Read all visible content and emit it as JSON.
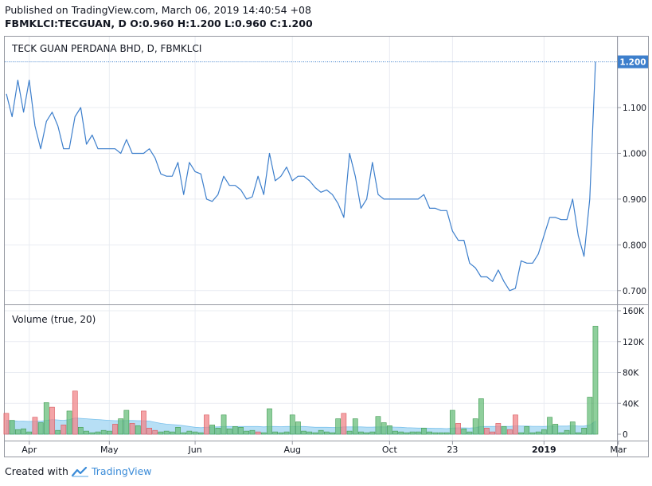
{
  "header": {
    "published": "Published on TradingView.com, March 06, 2019 14:40:54 +08",
    "ohlc": "FBMKLCI:TECGUAN, D  O:0.960  H:1.200  L:0.960  C:1.200"
  },
  "footer": {
    "created_with": "Created with",
    "brand": "TradingView"
  },
  "colors": {
    "price_line": "#3d7fcc",
    "up_volume": "#6abf7b",
    "down_volume": "#f0868a",
    "volume_ma": "#9fd4f2",
    "grid": "#e9ecf2",
    "last_price_badge": "#3d7fcc"
  },
  "chart_data": [
    {
      "type": "line",
      "title": "TECK GUAN PERDANA BHD, D, FBMKLCI",
      "last_price_label": "1.200",
      "ylim": [
        0.67,
        1.255
      ],
      "y_ticks": [
        "1.200",
        "1.100",
        "1.000",
        "0.900",
        "0.800",
        "0.700"
      ],
      "y_tick_values": [
        1.2,
        1.1,
        1.0,
        0.9,
        0.8,
        0.7
      ],
      "x_tick_labels": [
        "Apr",
        "May",
        "Jun",
        "Aug",
        "Oct",
        "23",
        "2019",
        "Mar"
      ],
      "x_tick_index": [
        4,
        18,
        33,
        50,
        67,
        78,
        94,
        107
      ],
      "grid": true,
      "values": [
        1.13,
        1.08,
        1.16,
        1.09,
        1.16,
        1.06,
        1.01,
        1.07,
        1.09,
        1.06,
        1.01,
        1.01,
        1.08,
        1.1,
        1.02,
        1.04,
        1.01,
        1.01,
        1.01,
        1.01,
        1.0,
        1.03,
        1.0,
        1.0,
        1.0,
        1.01,
        0.99,
        0.955,
        0.95,
        0.95,
        0.98,
        0.91,
        0.98,
        0.96,
        0.955,
        0.9,
        0.895,
        0.91,
        0.95,
        0.93,
        0.93,
        0.92,
        0.9,
        0.905,
        0.95,
        0.91,
        1.0,
        0.94,
        0.95,
        0.97,
        0.94,
        0.95,
        0.95,
        0.94,
        0.925,
        0.915,
        0.92,
        0.91,
        0.89,
        0.86,
        1.0,
        0.95,
        0.88,
        0.9,
        0.98,
        0.91,
        0.9,
        0.9,
        0.9,
        0.9,
        0.9,
        0.9,
        0.9,
        0.91,
        0.88,
        0.88,
        0.875,
        0.875,
        0.83,
        0.81,
        0.81,
        0.76,
        0.75,
        0.73,
        0.73,
        0.72,
        0.745,
        0.72,
        0.7,
        0.705,
        0.765,
        0.76,
        0.76,
        0.78,
        0.82,
        0.86,
        0.86,
        0.855,
        0.855,
        0.9,
        0.82,
        0.775,
        0.9,
        1.2
      ]
    },
    {
      "type": "bar",
      "title": "Volume (true, 20)",
      "ylim": [
        0,
        160000
      ],
      "y_ticks": [
        "160K",
        "120K",
        "80K",
        "40K",
        "0"
      ],
      "y_tick_values": [
        160000,
        120000,
        80000,
        40000,
        0
      ],
      "values": [
        27000,
        18000,
        6000,
        7000,
        3000,
        22000,
        15000,
        41000,
        35000,
        5000,
        12000,
        30000,
        56000,
        9000,
        4000,
        2000,
        3000,
        5000,
        4000,
        13000,
        20000,
        31000,
        14000,
        11000,
        30000,
        8000,
        5000,
        3000,
        4000,
        3000,
        9000,
        2000,
        4000,
        3000,
        2000,
        25000,
        12000,
        8000,
        25000,
        7000,
        10000,
        9000,
        4000,
        5000,
        3000,
        2000,
        33000,
        3000,
        2000,
        3000,
        25000,
        16000,
        4000,
        3000,
        2000,
        5000,
        3000,
        2000,
        20000,
        27000,
        4000,
        20000,
        3000,
        2000,
        3000,
        23000,
        15000,
        11000,
        4000,
        3000,
        2000,
        3000,
        3000,
        8000,
        3000,
        2000,
        2000,
        2000,
        31000,
        14000,
        7000,
        3000,
        20000,
        46000,
        8000,
        3000,
        14000,
        10000,
        6000,
        25000,
        2000,
        10000,
        2000,
        3000,
        6000,
        22000,
        13000,
        2000,
        5000,
        16000,
        2000,
        8000,
        48000,
        140000
      ],
      "direction": [
        "down",
        "up",
        "up",
        "up",
        "up",
        "down",
        "up",
        "up",
        "down",
        "up",
        "down",
        "up",
        "down",
        "up",
        "up",
        "up",
        "up",
        "up",
        "up",
        "down",
        "up",
        "up",
        "down",
        "up",
        "down",
        "down",
        "down",
        "up",
        "up",
        "up",
        "up",
        "up",
        "up",
        "up",
        "up",
        "down",
        "up",
        "up",
        "up",
        "up",
        "up",
        "up",
        "up",
        "up",
        "down",
        "up",
        "up",
        "up",
        "up",
        "up",
        "up",
        "up",
        "up",
        "up",
        "up",
        "up",
        "up",
        "up",
        "up",
        "down",
        "up",
        "up",
        "up",
        "up",
        "up",
        "up",
        "up",
        "up",
        "up",
        "up",
        "up",
        "up",
        "up",
        "up",
        "up",
        "up",
        "up",
        "up",
        "up",
        "down",
        "up",
        "up",
        "up",
        "up",
        "down",
        "down",
        "down",
        "up",
        "down",
        "down",
        "up",
        "up",
        "up",
        "up",
        "up",
        "up",
        "up",
        "up",
        "up",
        "up",
        "up",
        "up",
        "up",
        "up"
      ],
      "ma_values": [
        18000,
        17500,
        17000,
        16800,
        16500,
        16800,
        16800,
        18000,
        19000,
        18500,
        18000,
        19000,
        21000,
        20500,
        20000,
        19500,
        19000,
        18500,
        18000,
        17500,
        17500,
        17800,
        17800,
        17500,
        17500,
        17000,
        15500,
        14000,
        13000,
        12500,
        12000,
        11000,
        10000,
        9000,
        8500,
        9000,
        9500,
        9500,
        10000,
        10000,
        10000,
        10000,
        10000,
        10000,
        10000,
        9500,
        10000,
        10000,
        9800,
        10000,
        10000,
        10000,
        10000,
        9500,
        9000,
        9000,
        9000,
        8800,
        8800,
        9500,
        9500,
        9500,
        9500,
        9200,
        9200,
        9500,
        9500,
        9500,
        9200,
        9000,
        8500,
        8300,
        8000,
        8000,
        7800,
        7500,
        7500,
        7200,
        8000,
        8300,
        8300,
        8000,
        8500,
        10000,
        10000,
        10000,
        10200,
        10200,
        10000,
        10800,
        10500,
        10500,
        10200,
        10200,
        10000,
        10500,
        10500,
        10500,
        10500,
        11000,
        10500,
        10500,
        12000,
        17000
      ]
    }
  ]
}
